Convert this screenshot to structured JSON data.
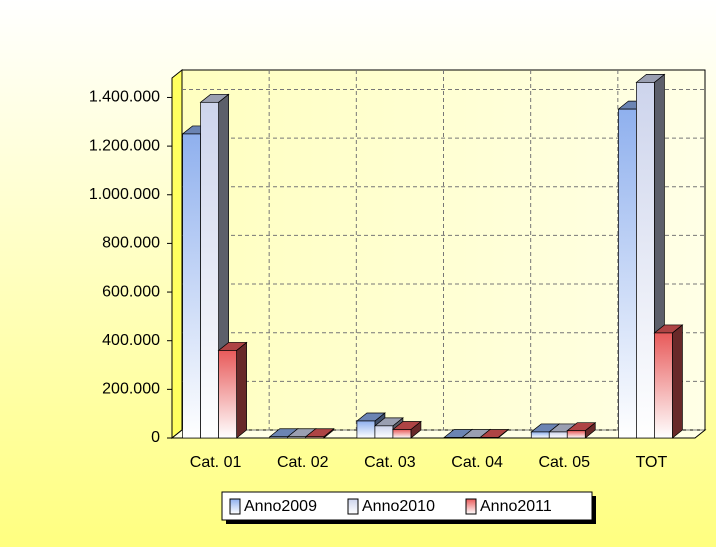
{
  "chart_data": {
    "type": "bar3d",
    "categories": [
      "Cat. 01",
      "Cat. 02",
      "Cat. 03",
      "Cat. 04",
      "Cat. 05",
      "TOT"
    ],
    "series": [
      {
        "name": "Anno2009",
        "color": "#8fb0ee",
        "values": [
          1250000,
          5000,
          70000,
          2000,
          25000,
          1352000
        ]
      },
      {
        "name": "Anno2010",
        "color": "#cdd4ec",
        "values": [
          1380000,
          5000,
          50000,
          2000,
          25000,
          1462000
        ]
      },
      {
        "name": "Anno2011",
        "color": "#e85a5a",
        "values": [
          360000,
          5000,
          35000,
          2000,
          30000,
          432000
        ]
      }
    ],
    "ylim": [
      0,
      1480000
    ],
    "yticks": [
      0,
      {
        "value": 200000,
        "label": "200.000"
      },
      {
        "value": 400000,
        "label": "400.000"
      },
      {
        "value": 600000,
        "label": "600.000"
      },
      {
        "value": 800000,
        "label": "800.000"
      },
      {
        "value": 1000000,
        "label": "1.000.000"
      },
      {
        "value": 1200000,
        "label": "1.200.000"
      },
      {
        "value": 1400000,
        "label": "1.400.000"
      }
    ],
    "grid": true,
    "legend": "bottom"
  }
}
